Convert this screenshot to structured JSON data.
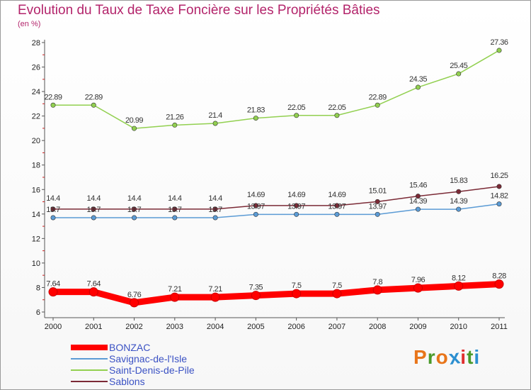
{
  "title": "Evolution du Taux de Taxe Foncière sur les Propriétés Bâties",
  "unit_label": "(en %)",
  "chart_data": {
    "type": "line",
    "title": "Evolution du Taux de Taxe Foncière sur les Propriétés Bâties",
    "ylabel": "(en %)",
    "xlabel": "",
    "x": [
      "2000",
      "2001",
      "2002",
      "2003",
      "2004",
      "2005",
      "2006",
      "2007",
      "2008",
      "2009",
      "2010",
      "2011"
    ],
    "ylim": [
      6,
      28
    ],
    "yticks": [
      6,
      8,
      10,
      12,
      14,
      16,
      18,
      20,
      22,
      24,
      26,
      28
    ],
    "grid": false,
    "legend_position": "bottom-left",
    "series": [
      {
        "name": "BONZAC",
        "color": "#ff0000",
        "values": [
          7.64,
          7.64,
          6.76,
          7.21,
          7.21,
          7.35,
          7.5,
          7.5,
          7.8,
          7.96,
          8.12,
          8.28
        ],
        "labels": [
          "7.64",
          "7.64",
          "6.76",
          "7.21",
          "7.21",
          "7.35",
          "7.5",
          "7.5",
          "7.8",
          "7.96",
          "8.12",
          "8.28"
        ]
      },
      {
        "name": "Savignac-de-l'Isle",
        "color": "#5b9bd5",
        "values": [
          13.7,
          13.7,
          13.7,
          13.7,
          13.7,
          13.97,
          13.97,
          13.97,
          13.97,
          14.39,
          14.39,
          14.82
        ],
        "labels": [
          "13.7",
          "13.7",
          "13.7",
          "13.7",
          "13.7",
          "13.97",
          "13.97",
          "13.97",
          "13.97",
          "14.39",
          "14.39",
          "14.82"
        ]
      },
      {
        "name": "Saint-Denis-de-Pile",
        "color": "#92d050",
        "values": [
          22.89,
          22.89,
          20.99,
          21.26,
          21.4,
          21.83,
          22.05,
          22.05,
          22.89,
          24.35,
          25.45,
          27.36
        ],
        "labels": [
          "22.89",
          "22.89",
          "20.99",
          "21.26",
          "21.4",
          "21.83",
          "22.05",
          "22.05",
          "22.89",
          "24.35",
          "25.45",
          "27.36"
        ]
      },
      {
        "name": "Sablons",
        "color": "#7b2a36",
        "values": [
          14.4,
          14.4,
          14.4,
          14.4,
          14.4,
          14.69,
          14.69,
          14.69,
          15.01,
          15.46,
          15.83,
          16.25
        ],
        "labels": [
          "14.4",
          "14.4",
          "14.4",
          "14.4",
          "14.4",
          "14.69",
          "14.69",
          "14.69",
          "15.01",
          "15.46",
          "15.83",
          "16.25"
        ]
      }
    ]
  },
  "logo": {
    "text": "Proxiti",
    "colors": [
      "#e8751a",
      "#4a9a2a",
      "#e8751a",
      "#2c8fd0",
      "#e03030",
      "#4a9a2a",
      "#2c8fd0"
    ]
  }
}
